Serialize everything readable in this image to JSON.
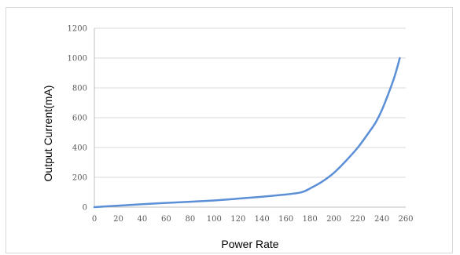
{
  "chart_data": {
    "type": "line",
    "title": "",
    "xlabel": "Power Rate",
    "ylabel": "Output Current(mA)",
    "xlim": [
      0,
      260
    ],
    "ylim": [
      0,
      1200
    ],
    "x_ticks": [
      "0",
      "20",
      "40",
      "60",
      "80",
      "100",
      "120",
      "140",
      "160",
      "180",
      "200",
      "220",
      "240",
      "260"
    ],
    "y_ticks": [
      "0",
      "200",
      "400",
      "600",
      "800",
      "1000",
      "1200"
    ],
    "grid": "horizontal",
    "legend": "none",
    "series": [
      {
        "color": "#5b8fd6",
        "x": [
          0,
          20,
          40,
          60,
          80,
          100,
          120,
          140,
          160,
          170,
          175,
          180,
          190,
          200,
          210,
          220,
          230,
          235,
          240,
          245,
          250,
          253,
          255
        ],
        "y": [
          0,
          10,
          20,
          28,
          36,
          45,
          57,
          70,
          85,
          95,
          105,
          125,
          170,
          230,
          310,
          400,
          510,
          570,
          650,
          750,
          860,
          940,
          1000
        ]
      }
    ]
  }
}
